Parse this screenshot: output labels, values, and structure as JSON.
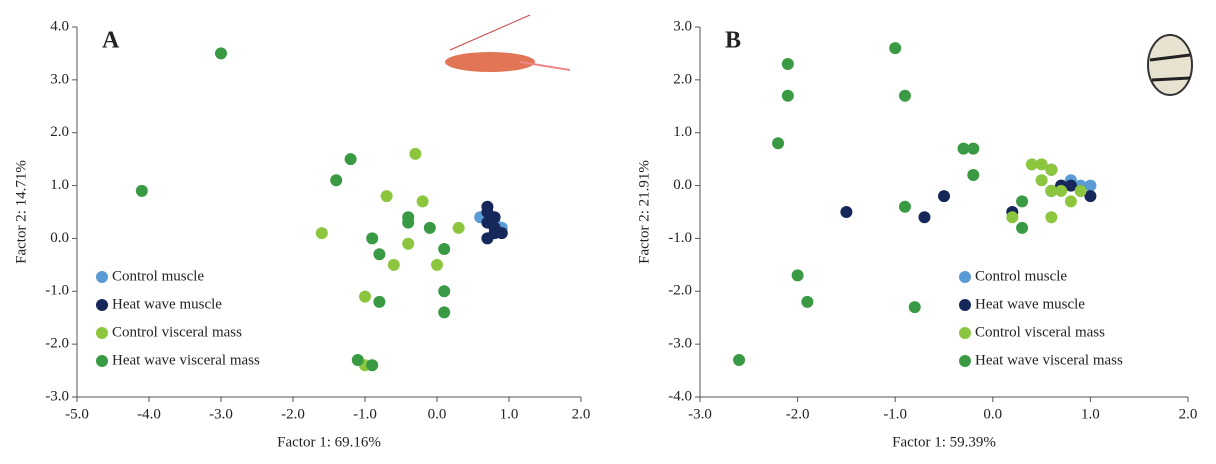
{
  "chart_data": [
    {
      "type": "scatter",
      "title": "A",
      "x_label": "Factor 1: 69.16%",
      "y_label": "Factor 2: 14.71%",
      "xlim": [
        -5,
        2
      ],
      "ylim": [
        -3,
        4
      ],
      "xticks": [
        {
          "value": -5,
          "label": "-5.0"
        },
        {
          "value": -4,
          "label": "-4.0"
        },
        {
          "value": -3,
          "label": "-3.0"
        },
        {
          "value": -2,
          "label": "-2.0"
        },
        {
          "value": -1,
          "label": "-1.0"
        },
        {
          "value": 0,
          "label": "0.0"
        },
        {
          "value": 1,
          "label": "1.0"
        },
        {
          "value": 2,
          "label": "2.0"
        }
      ],
      "yticks": [
        {
          "value": -3,
          "label": "-3.0"
        },
        {
          "value": -2,
          "label": "-2.0"
        },
        {
          "value": -1,
          "label": "-1.0"
        },
        {
          "value": 0,
          "label": "0.0"
        },
        {
          "value": 1,
          "label": "1.0"
        },
        {
          "value": 2,
          "label": "2.0"
        },
        {
          "value": 3,
          "label": "3.0"
        },
        {
          "value": 4,
          "label": "4.0"
        }
      ],
      "legend": "lower left",
      "series": [
        {
          "name": "Control muscle",
          "color": "#5b9bd5",
          "x": [
            0.7,
            0.9,
            0.8,
            0.6
          ],
          "values": [
            0.4,
            0.2,
            0.3,
            0.4
          ]
        },
        {
          "name": "Heat wave muscle",
          "color": "#16275a",
          "x": [
            0.7,
            0.7,
            0.8,
            0.7,
            0.8,
            0.8,
            0.7,
            0.9
          ],
          "values": [
            0.6,
            0.5,
            0.4,
            0.3,
            0.2,
            0.1,
            0.0,
            0.1
          ]
        },
        {
          "name": "Control visceral mass",
          "color": "#8cc63f",
          "x": [
            -0.3,
            -0.7,
            -0.2,
            -1.6,
            -0.4,
            0.3,
            -0.6,
            0.0,
            -1.0,
            -1.0
          ],
          "values": [
            1.6,
            0.8,
            0.7,
            0.1,
            -0.1,
            0.2,
            -0.5,
            -0.5,
            -1.1,
            -2.4
          ]
        },
        {
          "name": "Heat wave visceral mass",
          "color": "#3a9a44",
          "x": [
            -3.0,
            -4.1,
            -1.2,
            -1.4,
            -0.4,
            -0.4,
            -0.9,
            -0.8,
            -0.1,
            0.1,
            0.1,
            0.1,
            -0.8,
            -1.1,
            -0.9
          ],
          "values": [
            3.5,
            0.9,
            1.5,
            1.1,
            0.4,
            0.3,
            0.0,
            -0.3,
            0.2,
            -0.2,
            -1.0,
            -1.4,
            -1.2,
            -2.3,
            -2.4
          ]
        }
      ]
    },
    {
      "type": "scatter",
      "title": "B",
      "x_label": "Factor 1: 59.39%",
      "y_label": "Factor 2: 21.91%",
      "xlim": [
        -3,
        2
      ],
      "ylim": [
        -4,
        3
      ],
      "xticks": [
        {
          "value": -3,
          "label": "-3.0"
        },
        {
          "value": -2,
          "label": "-2.0"
        },
        {
          "value": -1,
          "label": "-1.0"
        },
        {
          "value": 0,
          "label": "0.0"
        },
        {
          "value": 1,
          "label": "1.0"
        },
        {
          "value": 2,
          "label": "2.0"
        }
      ],
      "yticks": [
        {
          "value": -4,
          "label": "-4.0"
        },
        {
          "value": -3,
          "label": "-3.0"
        },
        {
          "value": -2,
          "label": "-2.0"
        },
        {
          "value": -1,
          "label": "-1.0"
        },
        {
          "value": 0,
          "label": "0.0"
        },
        {
          "value": 1,
          "label": "1.0"
        },
        {
          "value": 2,
          "label": "2.0"
        },
        {
          "value": 3,
          "label": "3.0"
        }
      ],
      "legend": "lower right",
      "series": [
        {
          "name": "Control muscle",
          "color": "#5b9bd5",
          "x": [
            0.8,
            0.9,
            0.7,
            1.0,
            0.6
          ],
          "values": [
            0.1,
            0.0,
            0.0,
            0.0,
            -0.1
          ]
        },
        {
          "name": "Heat wave muscle",
          "color": "#16275a",
          "x": [
            -1.5,
            -0.7,
            -0.5,
            0.2,
            0.6,
            0.7,
            0.6,
            1.0,
            0.9,
            0.8
          ],
          "values": [
            -0.5,
            -0.6,
            -0.2,
            -0.5,
            0.3,
            0.0,
            -0.1,
            -0.2,
            -0.1,
            0.0
          ]
        },
        {
          "name": "Control visceral mass",
          "color": "#8cc63f",
          "x": [
            0.4,
            0.5,
            0.6,
            0.5,
            0.6,
            0.7,
            0.8,
            0.9,
            0.6,
            0.2
          ],
          "values": [
            0.4,
            0.4,
            0.3,
            0.1,
            -0.1,
            -0.1,
            -0.3,
            -0.1,
            -0.6,
            -0.6
          ]
        },
        {
          "name": "Heat wave visceral mass",
          "color": "#3a9a44",
          "x": [
            -2.1,
            -2.1,
            -2.2,
            -1.0,
            -0.9,
            -0.3,
            -0.2,
            -0.2,
            -0.9,
            -2.0,
            -1.9,
            -0.8,
            -2.6,
            0.3,
            0.3
          ],
          "values": [
            2.3,
            1.7,
            0.8,
            2.6,
            1.7,
            0.7,
            0.7,
            0.2,
            -0.4,
            -1.7,
            -2.2,
            -2.3,
            -3.3,
            -0.3,
            -0.8
          ]
        }
      ]
    }
  ]
}
